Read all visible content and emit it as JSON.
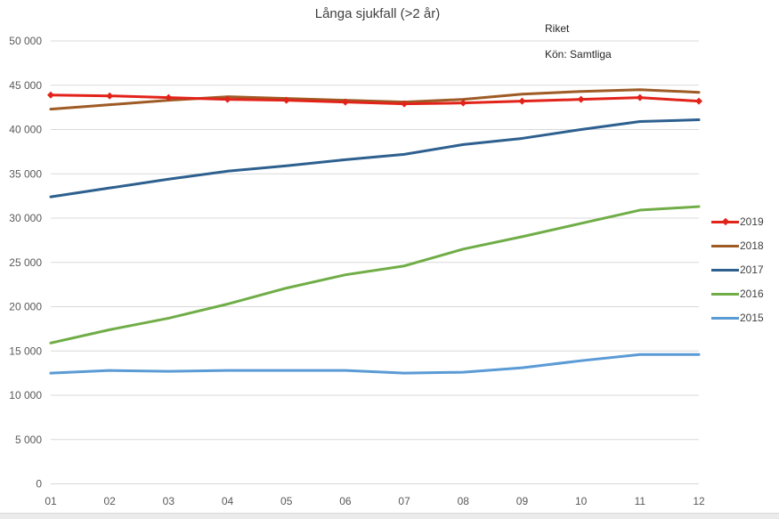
{
  "header": {
    "title": "Långa sjukfall (>2 år)",
    "region": "Riket",
    "filter": "Kön: Samtliga"
  },
  "chart_data": {
    "type": "line",
    "title": "Långa sjukfall (>2 år)",
    "xlabel": "",
    "ylabel": "",
    "x": [
      "01",
      "02",
      "03",
      "04",
      "05",
      "06",
      "07",
      "08",
      "09",
      "10",
      "11",
      "12"
    ],
    "ylim": [
      0,
      50000
    ],
    "ytick_step": 5000,
    "grid": true,
    "legend_position": "right",
    "colors": {
      "grid": "#d9d9d9",
      "axis_text": "#595959"
    },
    "series": [
      {
        "name": "2019",
        "color": "#e2231a",
        "marker": "diamond",
        "values": [
          43900,
          43800,
          43600,
          43400,
          43300,
          43100,
          42900,
          43000,
          43200,
          43400,
          43600,
          43200
        ]
      },
      {
        "name": "2018",
        "color": "#9e5b25",
        "marker": "none",
        "values": [
          42300,
          42800,
          43300,
          43700,
          43500,
          43300,
          43100,
          43400,
          44000,
          44300,
          44500,
          44200
        ]
      },
      {
        "name": "2017",
        "color": "#2d608f",
        "marker": "none",
        "values": [
          32400,
          33400,
          34400,
          35300,
          35900,
          36600,
          37200,
          38300,
          39000,
          40000,
          40900,
          41100
        ]
      },
      {
        "name": "2016",
        "color": "#70ad47",
        "marker": "none",
        "values": [
          15900,
          17400,
          18700,
          20300,
          22100,
          23600,
          24600,
          26500,
          27900,
          29400,
          30900,
          31300
        ]
      },
      {
        "name": "2015",
        "color": "#5b9bd5",
        "marker": "none",
        "values": [
          12500,
          12800,
          12700,
          12800,
          12800,
          12800,
          12500,
          12600,
          13100,
          13900,
          14600,
          14600
        ]
      }
    ]
  }
}
